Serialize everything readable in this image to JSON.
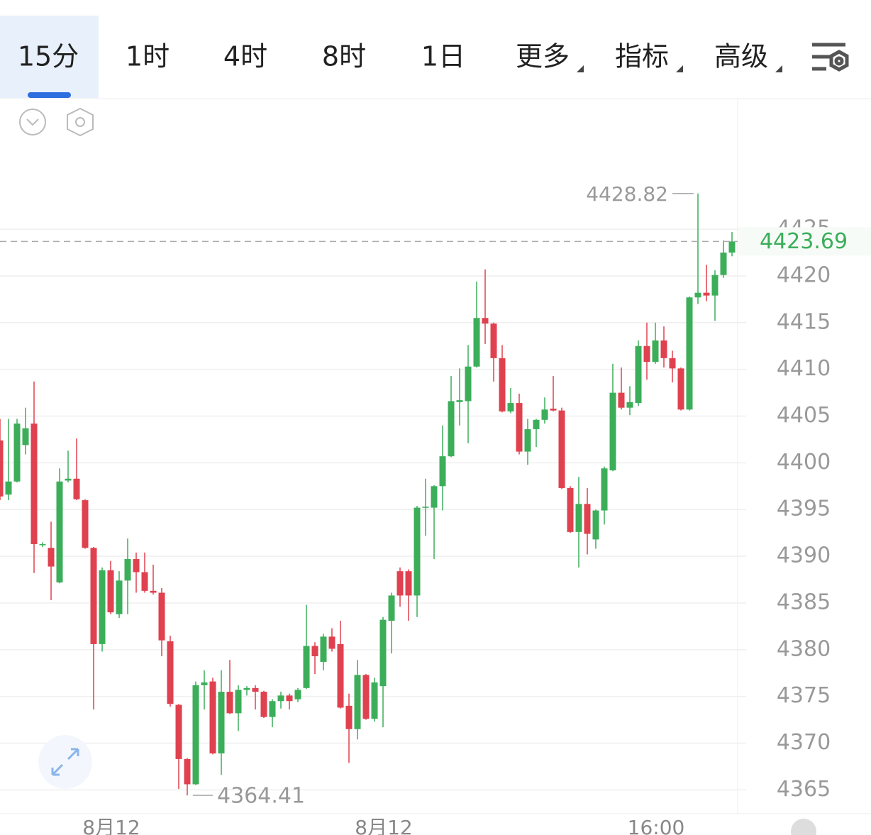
{
  "tabs": [
    "15分",
    "1时",
    "4时",
    "8时",
    "1日",
    "更多",
    "指标",
    "高级"
  ],
  "chart_data": {
    "type": "candlestick",
    "categories": [
      null,
      null,
      null,
      null,
      null,
      null,
      null,
      null,
      null,
      null,
      null,
      null,
      null,
      "8月12",
      null,
      null,
      null,
      null,
      null,
      null,
      null,
      null,
      null,
      null,
      null,
      null,
      null,
      null,
      null,
      null,
      null,
      null,
      null,
      null,
      null,
      null,
      null,
      null,
      null,
      null,
      null,
      null,
      null,
      null,
      null,
      "8月12",
      null,
      null,
      null,
      null,
      null,
      null,
      null,
      null,
      null,
      null,
      null,
      null,
      null,
      null,
      null,
      null,
      null,
      null,
      null,
      null,
      null,
      null,
      null,
      null,
      null,
      null,
      null,
      null,
      null,
      null,
      null,
      "16:00",
      null,
      null,
      null,
      null,
      null,
      null,
      null,
      null,
      null
    ],
    "open": [
      4402.4,
      4396.6,
      4398.0,
      4401.9,
      4404.2,
      4391.2,
      4390.9,
      4387.2,
      4398.1,
      4398.3,
      4396.0,
      4390.9,
      4380.6,
      4388.5,
      4383.8,
      4387.4,
      4389.7,
      4388.3,
      4386.3,
      4386.1,
      4380.9,
      4374.1,
      4368.3,
      4365.6,
      4376.2,
      4376.6,
      4368.9,
      4375.5,
      4373.2,
      4375.7,
      4375.9,
      4375.5,
      4372.8,
      4374.5,
      4375.1,
      4374.7,
      4375.9,
      4380.4,
      4378.7,
      4381.4,
      4380.6,
      4374.0,
      4371.5,
      4377.3,
      4372.6,
      4376.1,
      4383.1,
      4388.4,
      4388.4,
      4385.8,
      4395.2,
      4395.2,
      4397.5,
      4400.7,
      4406.5,
      4406.6,
      4410.3,
      4415.5,
      4414.9,
      4411.2,
      4405.5,
      4406.4,
      4401.2,
      4403.6,
      4404.6,
      4405.8,
      4405.6,
      4397.3,
      4392.6,
      4395.6,
      4391.8,
      4394.9,
      4399.2,
      4407.5,
      4405.9,
      4406.4,
      4412.5,
      4410.8,
      4413.1,
      4411.2,
      4410.1,
      4405.7,
      4417.7,
      4418.2,
      4417.9,
      4420.1,
      4422.5
    ],
    "high": [
      4404.7,
      4404.7,
      4404.7,
      4405.9,
      4408.7,
      4391.5,
      4393.7,
      4399.4,
      4401.3,
      4402.6,
      4396.1,
      4391.0,
      4388.8,
      4389.5,
      4388.4,
      4391.9,
      4390.4,
      4390.4,
      4389.1,
      4386.6,
      4381.5,
      4374.2,
      4368.4,
      4376.6,
      4377.8,
      4377.0,
      4377.8,
      4378.9,
      4376.2,
      4376.1,
      4376.2,
      4375.6,
      4374.7,
      4375.5,
      4375.3,
      4375.9,
      4384.8,
      4380.8,
      4381.7,
      4382.3,
      4383.1,
      4375.3,
      4378.9,
      4377.4,
      4377.0,
      4383.5,
      4386.1,
      4388.8,
      4388.6,
      4395.4,
      4398.3,
      4397.6,
      4404.0,
      4409.3,
      4410.1,
      4412.6,
      4419.4,
      4420.7,
      4415.0,
      4412.6,
      4408.0,
      4407.4,
      4404.7,
      4404.7,
      4407.0,
      4409.3,
      4405.9,
      4397.5,
      4398.5,
      4397.3,
      4395.0,
      4399.6,
      4410.6,
      4410.2,
      4408.2,
      4413.1,
      4415.0,
      4415.0,
      4414.6,
      4412.0,
      4410.2,
      4417.8,
      4428.82,
      4421.2,
      4420.6,
      4423.8,
      4424.7
    ],
    "low": [
      4396.0,
      4396.0,
      4397.9,
      4400.9,
      4388.2,
      4391.0,
      4385.3,
      4387.1,
      4397.9,
      4396.0,
      4390.8,
      4373.6,
      4379.8,
      4383.8,
      4383.4,
      4383.8,
      4386.1,
      4386.1,
      4385.9,
      4379.3,
      4373.9,
      4365.1,
      4364.41,
      4365.5,
      4373.6,
      4368.8,
      4366.6,
      4373.1,
      4371.3,
      4375.1,
      4373.6,
      4372.7,
      4371.7,
      4373.7,
      4373.6,
      4374.4,
      4375.8,
      4377.4,
      4377.8,
      4379.8,
      4373.7,
      4367.9,
      4370.4,
      4372.5,
      4372.3,
      4371.7,
      4379.6,
      4384.6,
      4383.1,
      4383.5,
      4392.2,
      4389.7,
      4394.9,
      4400.6,
      4404.0,
      4402.1,
      4410.2,
      4412.7,
      4408.7,
      4405.4,
      4405.3,
      4400.9,
      4399.8,
      4401.7,
      4404.2,
      4405.5,
      4397.2,
      4392.5,
      4388.8,
      4390.2,
      4390.8,
      4393.4,
      4399.1,
      4405.7,
      4405.1,
      4406.1,
      4408.9,
      4410.6,
      4410.2,
      4408.6,
      4405.6,
      4405.6,
      4417.0,
      4417.3,
      4415.2,
      4419.8,
      4422.1
    ],
    "close": [
      4396.4,
      4398.0,
      4404.2,
      4403.7,
      4391.3,
      4391.3,
      4388.9,
      4398.0,
      4398.3,
      4396.1,
      4390.9,
      4380.6,
      4388.5,
      4384.0,
      4387.4,
      4389.7,
      4388.3,
      4386.3,
      4386.1,
      4381.0,
      4374.2,
      4368.3,
      4365.6,
      4376.2,
      4376.5,
      4368.9,
      4375.5,
      4373.2,
      4375.7,
      4375.9,
      4375.5,
      4372.8,
      4374.5,
      4375.1,
      4374.5,
      4375.7,
      4380.4,
      4379.3,
      4381.4,
      4380.1,
      4373.8,
      4371.5,
      4377.3,
      4372.6,
      4376.5,
      4383.2,
      4385.8,
      4385.8,
      4385.8,
      4395.2,
      4395.3,
      4397.5,
      4400.7,
      4406.6,
      4406.7,
      4410.3,
      4415.5,
      4414.9,
      4411.2,
      4405.5,
      4406.4,
      4401.2,
      4403.6,
      4404.6,
      4405.7,
      4405.6,
      4397.3,
      4392.6,
      4395.6,
      4392.4,
      4394.9,
      4399.4,
      4407.5,
      4405.9,
      4406.5,
      4412.5,
      4410.8,
      4413.1,
      4411.2,
      4410.1,
      4405.7,
      4417.7,
      4418.2,
      4417.9,
      4420.1,
      4422.5,
      4423.69
    ],
    "up_color": "#3cae5a",
    "down_color": "#e0414f",
    "ylim": [
      4362.6,
      4438.9
    ],
    "yticks": [
      4365,
      4370,
      4375,
      4380,
      4385,
      4390,
      4395,
      4400,
      4405,
      4410,
      4415,
      4420,
      4425
    ],
    "grid": true
  }
}
